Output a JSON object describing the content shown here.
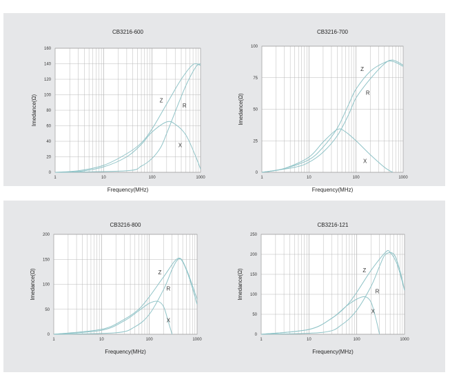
{
  "chart_data": [
    {
      "type": "line",
      "title": "CB3216-600",
      "xlabel": "Frequency(MHz)",
      "ylabel": "Imedance(Ω)",
      "xscale": "log",
      "xlim": [
        1,
        1000
      ],
      "ylim": [
        0,
        160
      ],
      "xticks": [
        "1",
        "10",
        "100",
        "1000"
      ],
      "yticks": [
        "0",
        "20",
        "40",
        "60",
        "80",
        "100",
        "120",
        "140",
        "160"
      ],
      "grid": true,
      "series": [
        {
          "name": "Z",
          "x": [
            1,
            3,
            10,
            30,
            60,
            100,
            200,
            400,
            700,
            1000
          ],
          "values": [
            0,
            2,
            9,
            24,
            38,
            56,
            88,
            120,
            139,
            138
          ]
        },
        {
          "name": "R",
          "x": [
            1,
            30,
            60,
            100,
            150,
            200,
            300,
            500,
            800,
            1000
          ],
          "values": [
            0,
            2,
            8,
            18,
            32,
            50,
            78,
            112,
            136,
            140
          ]
        },
        {
          "name": "X",
          "x": [
            1,
            3,
            10,
            30,
            60,
            100,
            200,
            300,
            500,
            800,
            1000
          ],
          "values": [
            0,
            1,
            7,
            20,
            36,
            52,
            65,
            62,
            48,
            20,
            4
          ]
        }
      ]
    },
    {
      "type": "line",
      "title": "CB3216-700",
      "xlabel": "Frequency(MHz)",
      "ylabel": "Imedance(Ω)",
      "xscale": "log",
      "xlim": [
        1,
        1000
      ],
      "ylim": [
        0,
        100
      ],
      "xticks": [
        "1",
        "10",
        "100",
        "1000"
      ],
      "yticks": [
        "0",
        "25",
        "50",
        "75",
        "100"
      ],
      "grid": true,
      "series": [
        {
          "name": "Z",
          "x": [
            1,
            3,
            10,
            20,
            40,
            70,
            100,
            200,
            400,
            600,
            1000
          ],
          "values": [
            0,
            3,
            10,
            20,
            35,
            54,
            66,
            80,
            87,
            88,
            84
          ]
        },
        {
          "name": "R",
          "x": [
            1,
            5,
            10,
            20,
            40,
            70,
            100,
            200,
            400,
            600,
            1000
          ],
          "values": [
            0,
            4,
            8,
            16,
            29,
            46,
            59,
            74,
            86,
            89,
            85
          ]
        },
        {
          "name": "X",
          "x": [
            1,
            3,
            10,
            20,
            40,
            60,
            100,
            200,
            400,
            600
          ],
          "values": [
            0,
            3,
            12,
            24,
            34,
            32,
            25,
            14,
            4,
            0
          ]
        }
      ]
    },
    {
      "type": "line",
      "title": "CB3216-800",
      "xlabel": "Frequency(MHz)",
      "ylabel": "Imedance(Ω)",
      "xscale": "log",
      "xlim": [
        1,
        1000
      ],
      "ylim": [
        0,
        200
      ],
      "xticks": [
        "1",
        "10",
        "100",
        "1000"
      ],
      "yticks": [
        "0",
        "50",
        "100",
        "150",
        "200"
      ],
      "grid": true,
      "series": [
        {
          "name": "Z",
          "x": [
            1,
            10,
            30,
            60,
            100,
            200,
            400,
            600,
            1000
          ],
          "values": [
            0,
            10,
            30,
            50,
            75,
            115,
            152,
            130,
            70
          ]
        },
        {
          "name": "R",
          "x": [
            1,
            20,
            50,
            100,
            200,
            300,
            400,
            500,
            700,
            1000
          ],
          "values": [
            0,
            3,
            15,
            40,
            90,
            130,
            150,
            145,
            110,
            60
          ]
        },
        {
          "name": "X",
          "x": [
            1,
            10,
            30,
            60,
            100,
            150,
            200,
            250,
            300
          ],
          "values": [
            0,
            8,
            27,
            47,
            62,
            66,
            55,
            25,
            0
          ]
        }
      ]
    },
    {
      "type": "line",
      "title": "CB3216-121",
      "xlabel": "Frequency(MHz)",
      "ylabel": "Imedance(Ω)",
      "xscale": "log",
      "xlim": [
        1,
        1000
      ],
      "ylim": [
        0,
        250
      ],
      "xticks": [
        "1",
        "10",
        "100",
        "1000"
      ],
      "yticks": [
        "0",
        "50",
        "100",
        "150",
        "200",
        "250"
      ],
      "grid": true,
      "series": [
        {
          "name": "Z",
          "x": [
            1,
            10,
            30,
            60,
            100,
            200,
            400,
            500,
            700,
            1000
          ],
          "values": [
            0,
            12,
            40,
            70,
            105,
            160,
            205,
            205,
            175,
            110
          ]
        },
        {
          "name": "R",
          "x": [
            1,
            20,
            50,
            100,
            200,
            300,
            400,
            600,
            800,
            1000
          ],
          "values": [
            0,
            5,
            25,
            60,
            120,
            170,
            200,
            200,
            160,
            110
          ]
        },
        {
          "name": "X",
          "x": [
            1,
            10,
            30,
            60,
            100,
            150,
            200,
            250,
            300
          ],
          "values": [
            0,
            12,
            40,
            70,
            88,
            94,
            80,
            40,
            0
          ]
        }
      ]
    }
  ],
  "style": {
    "panel_bg": "#e6e7e9",
    "plot_bg": "#ffffff",
    "grid_color": "#b8b8b8",
    "curve_color": "#8fc3c7"
  }
}
